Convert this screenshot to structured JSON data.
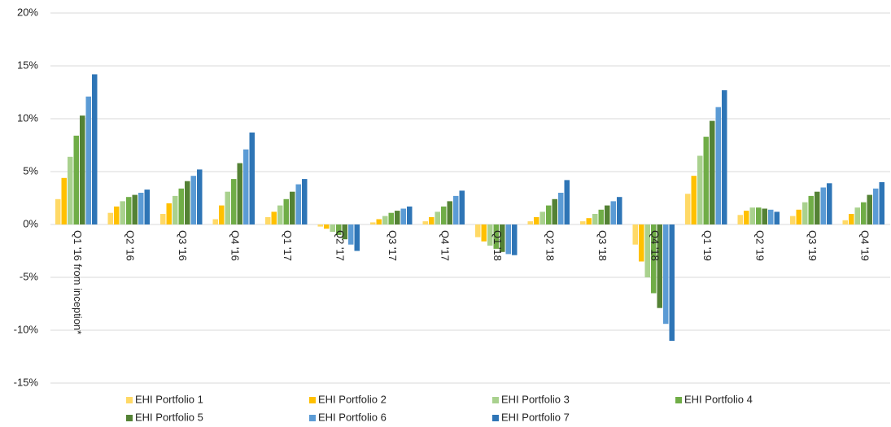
{
  "chart_data": {
    "type": "bar",
    "categories": [
      "Q1 '16 from inception*",
      "Q2 '16",
      "Q3 '16",
      "Q4 '16",
      "Q1 '17",
      "Q2 '17",
      "Q3 '17",
      "Q4 '17",
      "Q1 '18",
      "Q2 '18",
      "Q3 '18",
      "Q4 '18",
      "Q1 '19",
      "Q2 '19",
      "Q3 '19",
      "Q4 '19"
    ],
    "series": [
      {
        "name": "EHI Portfolio 1",
        "color": "#ffd966",
        "values": [
          2.4,
          1.1,
          1.0,
          0.5,
          0.7,
          -0.2,
          0.2,
          0.3,
          -1.2,
          0.3,
          0.3,
          -1.9,
          2.9,
          0.9,
          0.8,
          0.4
        ]
      },
      {
        "name": "EHI Portfolio 2",
        "color": "#ffc000",
        "values": [
          4.4,
          1.7,
          2.0,
          1.8,
          1.2,
          -0.4,
          0.5,
          0.7,
          -1.6,
          0.7,
          0.6,
          -3.5,
          4.6,
          1.3,
          1.4,
          1.0
        ]
      },
      {
        "name": "EHI Portfolio 3",
        "color": "#a9d18e",
        "values": [
          6.4,
          2.2,
          2.7,
          3.1,
          1.8,
          -0.7,
          0.8,
          1.2,
          -2.0,
          1.2,
          1.0,
          -5.0,
          6.5,
          1.6,
          2.1,
          1.6
        ]
      },
      {
        "name": "EHI Portfolio 4",
        "color": "#70ad47",
        "values": [
          8.4,
          2.6,
          3.4,
          4.3,
          2.4,
          -1.0,
          1.1,
          1.7,
          -2.3,
          1.8,
          1.4,
          -6.5,
          8.3,
          1.6,
          2.7,
          2.1
        ]
      },
      {
        "name": "EHI Portfolio 5",
        "color": "#548235",
        "values": [
          10.3,
          2.8,
          4.1,
          5.8,
          3.1,
          -1.4,
          1.3,
          2.2,
          -2.6,
          2.4,
          1.8,
          -7.9,
          9.8,
          1.5,
          3.1,
          2.8
        ]
      },
      {
        "name": "EHI Portfolio 6",
        "color": "#5b9bd5",
        "values": [
          12.1,
          3.0,
          4.6,
          7.1,
          3.8,
          -1.9,
          1.5,
          2.7,
          -2.8,
          3.0,
          2.2,
          -9.4,
          11.1,
          1.4,
          3.5,
          3.4
        ]
      },
      {
        "name": "EHI Portfolio 7",
        "color": "#2e75b6",
        "values": [
          14.2,
          3.3,
          5.2,
          8.7,
          4.3,
          -2.5,
          1.7,
          3.2,
          -2.9,
          4.2,
          2.6,
          -11.0,
          12.7,
          1.2,
          3.9,
          4.0
        ]
      }
    ],
    "ylim": [
      -15,
      20
    ],
    "yticks": [
      {
        "value": -15,
        "label": "-15%"
      },
      {
        "value": -10,
        "label": "-10%"
      },
      {
        "value": -5,
        "label": "-5%"
      },
      {
        "value": 0,
        "label": "0%"
      },
      {
        "value": 5,
        "label": "5%"
      },
      {
        "value": 10,
        "label": "10%"
      },
      {
        "value": 15,
        "label": "15%"
      },
      {
        "value": 20,
        "label": "20%"
      }
    ],
    "grid": true,
    "legend": "bottom"
  }
}
